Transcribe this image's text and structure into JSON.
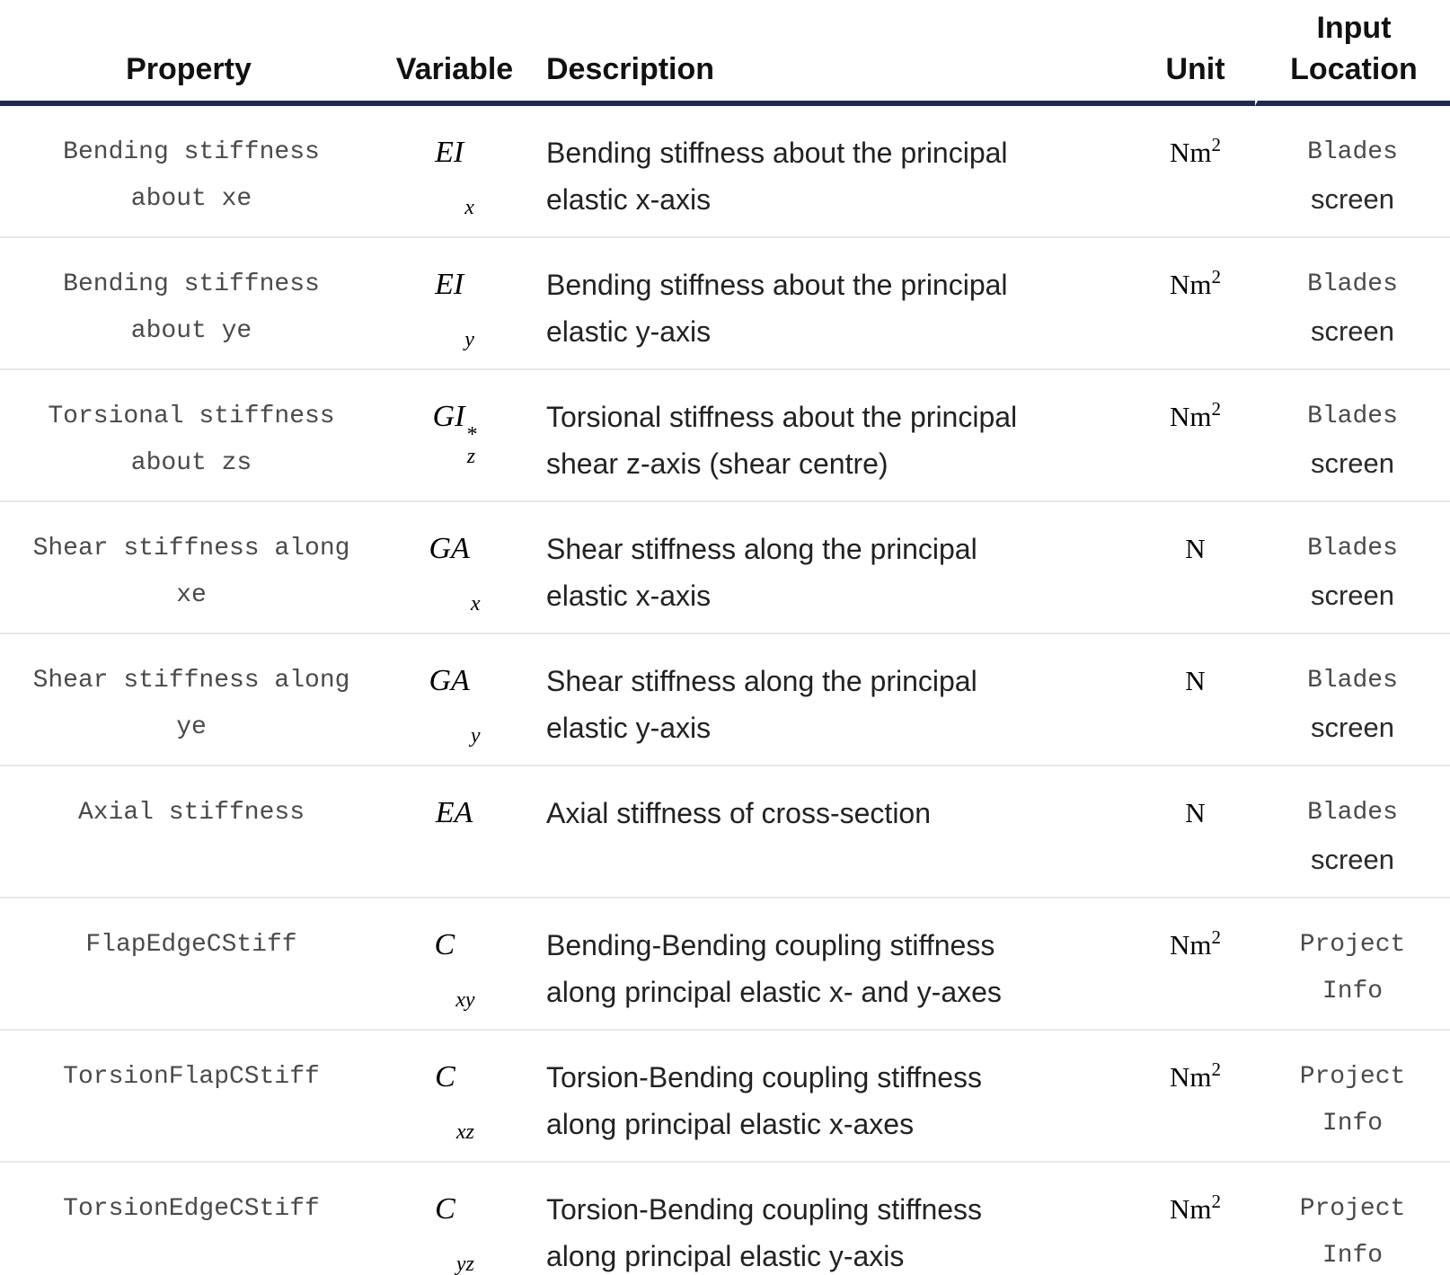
{
  "colors": {
    "header_rule": "#1e2b4e",
    "row_divider": "#e8e8e8",
    "code_text": "#4a4a4a",
    "body_text": "#222222"
  },
  "table": {
    "headers": {
      "property": "Property",
      "variable": "Variable",
      "description": "Description",
      "unit": "Unit",
      "input_location": "Input Location"
    },
    "rows": [
      {
        "property_lines": [
          "Bending stiffness",
          "about xe"
        ],
        "variable": {
          "base": "EI",
          "sup": "",
          "sub": "x"
        },
        "description_lines": [
          "Bending stiffness about the principal",
          "elastic x-axis"
        ],
        "unit": {
          "base": "Nm",
          "sup": "2"
        },
        "input_location_lines": [
          "Blades",
          "screen"
        ]
      },
      {
        "property_lines": [
          "Bending stiffness",
          "about ye"
        ],
        "variable": {
          "base": "EI",
          "sup": "",
          "sub": "y"
        },
        "description_lines": [
          "Bending stiffness about the principal",
          "elastic y-axis"
        ],
        "unit": {
          "base": "Nm",
          "sup": "2"
        },
        "input_location_lines": [
          "Blades",
          "screen"
        ]
      },
      {
        "property_lines": [
          "Torsional stiffness",
          "about zs"
        ],
        "variable": {
          "base": "GI",
          "sup": "*",
          "sub": "z"
        },
        "description_lines": [
          "Torsional stiffness about the principal",
          "shear z-axis (shear centre)"
        ],
        "unit": {
          "base": "Nm",
          "sup": "2"
        },
        "input_location_lines": [
          "Blades",
          "screen"
        ]
      },
      {
        "property_lines": [
          "Shear stiffness along",
          "xe"
        ],
        "variable": {
          "base": "GA",
          "sup": "",
          "sub": "x"
        },
        "description_lines": [
          "Shear stiffness along the principal",
          "elastic x-axis"
        ],
        "unit": {
          "base": "N",
          "sup": ""
        },
        "input_location_lines": [
          "Blades",
          "screen"
        ]
      },
      {
        "property_lines": [
          "Shear stiffness along",
          "ye"
        ],
        "variable": {
          "base": "GA",
          "sup": "",
          "sub": "y"
        },
        "description_lines": [
          "Shear stiffness along the principal",
          "elastic y-axis"
        ],
        "unit": {
          "base": "N",
          "sup": ""
        },
        "input_location_lines": [
          "Blades",
          "screen"
        ]
      },
      {
        "property_lines": [
          "Axial stiffness"
        ],
        "variable": {
          "base": "EA",
          "sup": "",
          "sub": ""
        },
        "description_lines": [
          "Axial stiffness of cross-section"
        ],
        "unit": {
          "base": "N",
          "sup": ""
        },
        "input_location_lines": [
          "Blades",
          "screen"
        ]
      },
      {
        "property_lines": [
          "FlapEdgeCStiff"
        ],
        "variable": {
          "base": "C",
          "sup": "",
          "sub": "xy"
        },
        "description_lines": [
          "Bending-Bending coupling stiffness",
          "along principal elastic x- and y-axes"
        ],
        "unit": {
          "base": "Nm",
          "sup": "2"
        },
        "input_location_lines": [
          "Project",
          "Info"
        ]
      },
      {
        "property_lines": [
          "TorsionFlapCStiff"
        ],
        "variable": {
          "base": "C",
          "sup": "",
          "sub": "xz"
        },
        "description_lines": [
          "Torsion-Bending coupling stiffness",
          "along principal elastic x-axes"
        ],
        "unit": {
          "base": "Nm",
          "sup": "2"
        },
        "input_location_lines": [
          "Project",
          "Info"
        ]
      },
      {
        "property_lines": [
          "TorsionEdgeCStiff"
        ],
        "variable": {
          "base": "C",
          "sup": "",
          "sub": "yz"
        },
        "description_lines": [
          "Torsion-Bending coupling stiffness",
          "along principal elastic y-axis"
        ],
        "unit": {
          "base": "Nm",
          "sup": "2"
        },
        "input_location_lines": [
          "Project",
          "Info"
        ]
      }
    ]
  }
}
